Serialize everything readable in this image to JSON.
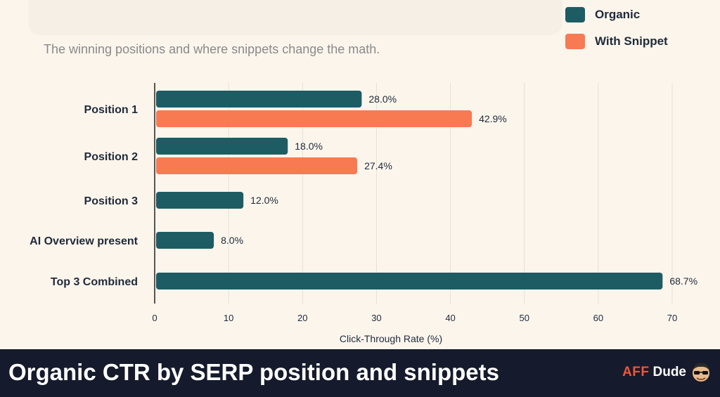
{
  "subtitle": "The winning positions and where snippets change the math.",
  "legend": [
    {
      "label": "Organic",
      "color": "#1e5c63"
    },
    {
      "label": "With Snippet",
      "color": "#f77a53"
    }
  ],
  "chart_data": {
    "type": "bar",
    "orientation": "horizontal",
    "categories": [
      "Position 1",
      "Position 2",
      "Position 3",
      "AI Overview present",
      "Top 3 Combined"
    ],
    "series": [
      {
        "name": "Organic",
        "color": "#1e5c63",
        "values": [
          28.0,
          18.0,
          12.0,
          8.0,
          68.7
        ]
      },
      {
        "name": "With Snippet",
        "color": "#f77a53",
        "values": [
          42.9,
          27.4,
          null,
          null,
          null
        ]
      }
    ],
    "value_labels": [
      [
        "28.0%",
        "18.0%",
        "12.0%",
        "8.0%",
        "68.7%"
      ],
      [
        "42.9%",
        "27.4%",
        null,
        null,
        null
      ]
    ],
    "xlim": [
      0,
      70
    ],
    "xticks": [
      0,
      10,
      20,
      30,
      40,
      50,
      60,
      70
    ],
    "xlabel": "Click-Through Rate (%)",
    "grid": "vertical",
    "legend_position": "top-right"
  },
  "footer": {
    "title": "Organic CTR by SERP position and snippets",
    "logo_aff": "AFF",
    "logo_dude": "Dude"
  }
}
